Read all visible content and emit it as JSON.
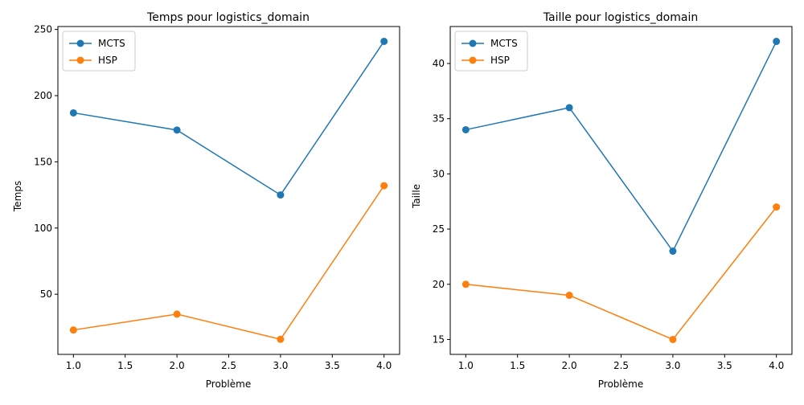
{
  "chart_data": [
    {
      "type": "line",
      "title": "Temps pour logistics_domain",
      "xlabel": "Problème",
      "ylabel": "Temps",
      "x": [
        1.0,
        2.0,
        3.0,
        4.0
      ],
      "xlim": [
        0.85,
        4.15
      ],
      "ylim": [
        4.6,
        252.2
      ],
      "xticks": [
        "1.0",
        "1.5",
        "2.0",
        "2.5",
        "3.0",
        "3.5",
        "4.0"
      ],
      "yticks": [
        "50",
        "100",
        "150",
        "200",
        "250"
      ],
      "grid": false,
      "legend_position": "upper left",
      "series": [
        {
          "name": "MCTS",
          "color": "#1f77b4",
          "values": [
            187,
            174,
            125,
            241
          ]
        },
        {
          "name": "HSP",
          "color": "#ff7f0e",
          "values": [
            23,
            35,
            16,
            132
          ]
        }
      ]
    },
    {
      "type": "line",
      "title": "Taille pour logistics_domain",
      "xlabel": "Problème",
      "ylabel": "Taille",
      "x": [
        1.0,
        2.0,
        3.0,
        4.0
      ],
      "xlim": [
        0.85,
        4.15
      ],
      "ylim": [
        13.65,
        43.35
      ],
      "xticks": [
        "1.0",
        "1.5",
        "2.0",
        "2.5",
        "3.0",
        "3.5",
        "4.0"
      ],
      "yticks": [
        "15",
        "20",
        "25",
        "30",
        "35",
        "40"
      ],
      "grid": false,
      "legend_position": "upper left",
      "series": [
        {
          "name": "MCTS",
          "color": "#1f77b4",
          "values": [
            34,
            36,
            23,
            42
          ]
        },
        {
          "name": "HSP",
          "color": "#ff7f0e",
          "values": [
            20,
            19,
            15,
            27
          ]
        }
      ]
    }
  ]
}
